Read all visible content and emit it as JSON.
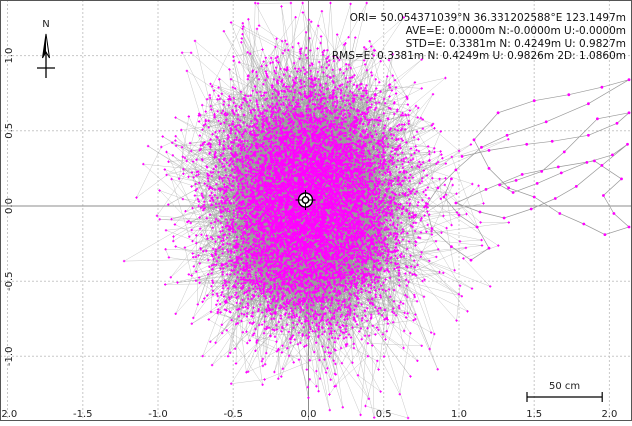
{
  "info_lines": [
    "ORI= 50.054371039°N  36.331202588°E 123.1497m",
    "AVE=E: 0.0000m N:-0.0000m U:-0.0000m",
    "STD=E: 0.3381m N: 0.4249m U: 0.9827m",
    "RMS=E: 0.3381m N: 0.4249m U: 0.9826m 2D:  1.0860m"
  ],
  "compass_label": "N",
  "scale_bar_label": "50 cm",
  "colors": {
    "points": "#ff00ff",
    "track": "#9a9a9a",
    "grid": "#c8c8c8",
    "axis_zero": "#8c8c8c",
    "frame": "#555555"
  },
  "icons": {
    "compass": "north-arrow-icon",
    "origin_marker": "crosshair-circle-icon"
  },
  "chart_data": {
    "type": "scatter",
    "title": "",
    "xlabel": "",
    "ylabel": "",
    "xlim": [
      -2.05,
      2.15
    ],
    "ylim": [
      -1.43,
      1.37
    ],
    "x_ticks": [
      -2.0,
      -1.5,
      -1.0,
      -0.5,
      0.0,
      0.5,
      1.0,
      1.5,
      2.0
    ],
    "x_tick_labels": [
      "-2.0",
      "-1.5",
      "-1.0",
      "-0.5",
      "0.0",
      "0.5",
      "1.0",
      "1.5",
      "2.0"
    ],
    "y_ticks": [
      -1.0,
      -0.5,
      0.0,
      0.5,
      1.0
    ],
    "y_tick_labels": [
      "-1.0",
      "-0.5",
      "0.0",
      "0.5",
      "1.0"
    ],
    "grid": true,
    "connected_track": true,
    "origin_marker": [
      -0.02,
      0.04
    ],
    "scale_bar_length": 0.5,
    "series": [
      {
        "distribution": "gaussian-random-walk",
        "center": [
          0.0,
          0.0
        ],
        "std_e": 0.3381,
        "std_n": 0.4249,
        "point_count": 9000
      },
      {
        "distribution": "outlier-track",
        "points": [
          [
            1.02,
            0.33
          ],
          [
            1.2,
            0.37
          ],
          [
            1.45,
            0.41
          ],
          [
            1.62,
            0.43
          ],
          [
            1.86,
            0.47
          ],
          [
            2.05,
            0.55
          ],
          [
            2.13,
            0.62
          ],
          [
            1.92,
            0.58
          ],
          [
            1.7,
            0.36
          ],
          [
            1.55,
            0.23
          ],
          [
            1.38,
            0.17
          ],
          [
            1.27,
            0.14
          ],
          [
            1.36,
            0.09
          ],
          [
            1.52,
            0.15
          ],
          [
            1.68,
            0.22
          ],
          [
            1.85,
            0.29
          ],
          [
            2.02,
            0.34
          ],
          [
            2.12,
            0.41
          ],
          [
            1.95,
            0.27
          ],
          [
            1.78,
            0.13
          ],
          [
            1.64,
            0.05
          ],
          [
            1.48,
            -0.02
          ],
          [
            1.3,
            -0.08
          ],
          [
            1.14,
            -0.04
          ],
          [
            0.98,
            0.02
          ],
          [
            1.18,
            0.11
          ],
          [
            1.42,
            0.21
          ],
          [
            1.66,
            0.26
          ],
          [
            1.9,
            0.3
          ],
          [
            2.08,
            0.18
          ],
          [
            1.96,
            0.07
          ],
          [
            2.03,
            -0.05
          ],
          [
            2.13,
            -0.14
          ],
          [
            1.97,
            -0.19
          ],
          [
            1.83,
            -0.12
          ],
          [
            1.67,
            -0.05
          ],
          [
            1.5,
            0.06
          ],
          [
            1.33,
            0.12
          ],
          [
            1.2,
            0.25
          ],
          [
            1.1,
            0.44
          ],
          [
            1.26,
            0.62
          ],
          [
            1.5,
            0.7
          ],
          [
            1.73,
            0.74
          ],
          [
            1.95,
            0.79
          ],
          [
            2.13,
            0.84
          ],
          [
            1.86,
            0.68
          ],
          [
            1.58,
            0.56
          ],
          [
            1.32,
            0.47
          ],
          [
            1.15,
            0.39
          ],
          [
            0.98,
            0.24
          ],
          [
            0.86,
            0.12
          ],
          [
            0.78,
            0.0
          ],
          [
            0.82,
            -0.15
          ],
          [
            0.95,
            -0.27
          ],
          [
            1.08,
            -0.36
          ],
          [
            1.2,
            -0.28
          ],
          [
            1.12,
            -0.14
          ],
          [
            1.0,
            -0.06
          ],
          [
            0.9,
            0.06
          ],
          [
            0.95,
            0.18
          ]
        ]
      }
    ]
  }
}
